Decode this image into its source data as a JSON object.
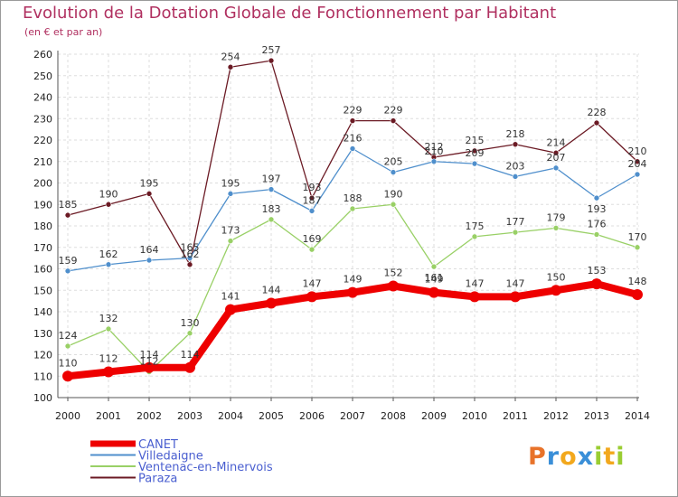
{
  "chart_data": {
    "type": "line",
    "title": "Evolution de la Dotation Globale de Fonctionnement par Habitant",
    "subtitle": "(en € et par an)",
    "x": [
      2000,
      2001,
      2002,
      2003,
      2004,
      2005,
      2006,
      2007,
      2008,
      2009,
      2010,
      2011,
      2012,
      2013,
      2014
    ],
    "ylim": [
      100,
      260
    ],
    "yticks": [
      100,
      110,
      120,
      130,
      140,
      150,
      160,
      170,
      180,
      190,
      200,
      210,
      220,
      230,
      240,
      250,
      260
    ],
    "grid": true,
    "legend_position": "bottom-left",
    "series": [
      {
        "name": "Paraza",
        "color": "#6b1a24",
        "values": [
          185,
          190,
          195,
          162,
          254,
          257,
          193,
          229,
          229,
          212,
          215,
          218,
          214,
          228,
          210
        ]
      },
      {
        "name": "Villedaigne",
        "color": "#4f8fcc",
        "values": [
          159,
          162,
          164,
          165,
          195,
          197,
          187,
          216,
          205,
          210,
          209,
          203,
          207,
          193,
          204
        ]
      },
      {
        "name": "Ventenac-en-Minervois",
        "color": "#99d066",
        "values": [
          124,
          132,
          112,
          130,
          173,
          183,
          169,
          188,
          190,
          161,
          175,
          177,
          179,
          176,
          170
        ]
      },
      {
        "name": "CANET",
        "color": "#ee0000",
        "values": [
          110,
          112,
          114,
          114,
          141,
          144,
          147,
          149,
          152,
          149,
          147,
          147,
          150,
          153,
          148
        ]
      }
    ],
    "legend": [
      "CANET",
      "Villedaigne",
      "Ventenac-en-Minervois",
      "Paraza"
    ]
  },
  "logo": {
    "text": "Proxiti",
    "letters": [
      "P",
      "r",
      "o",
      "x",
      "i",
      "t",
      "i"
    ]
  }
}
